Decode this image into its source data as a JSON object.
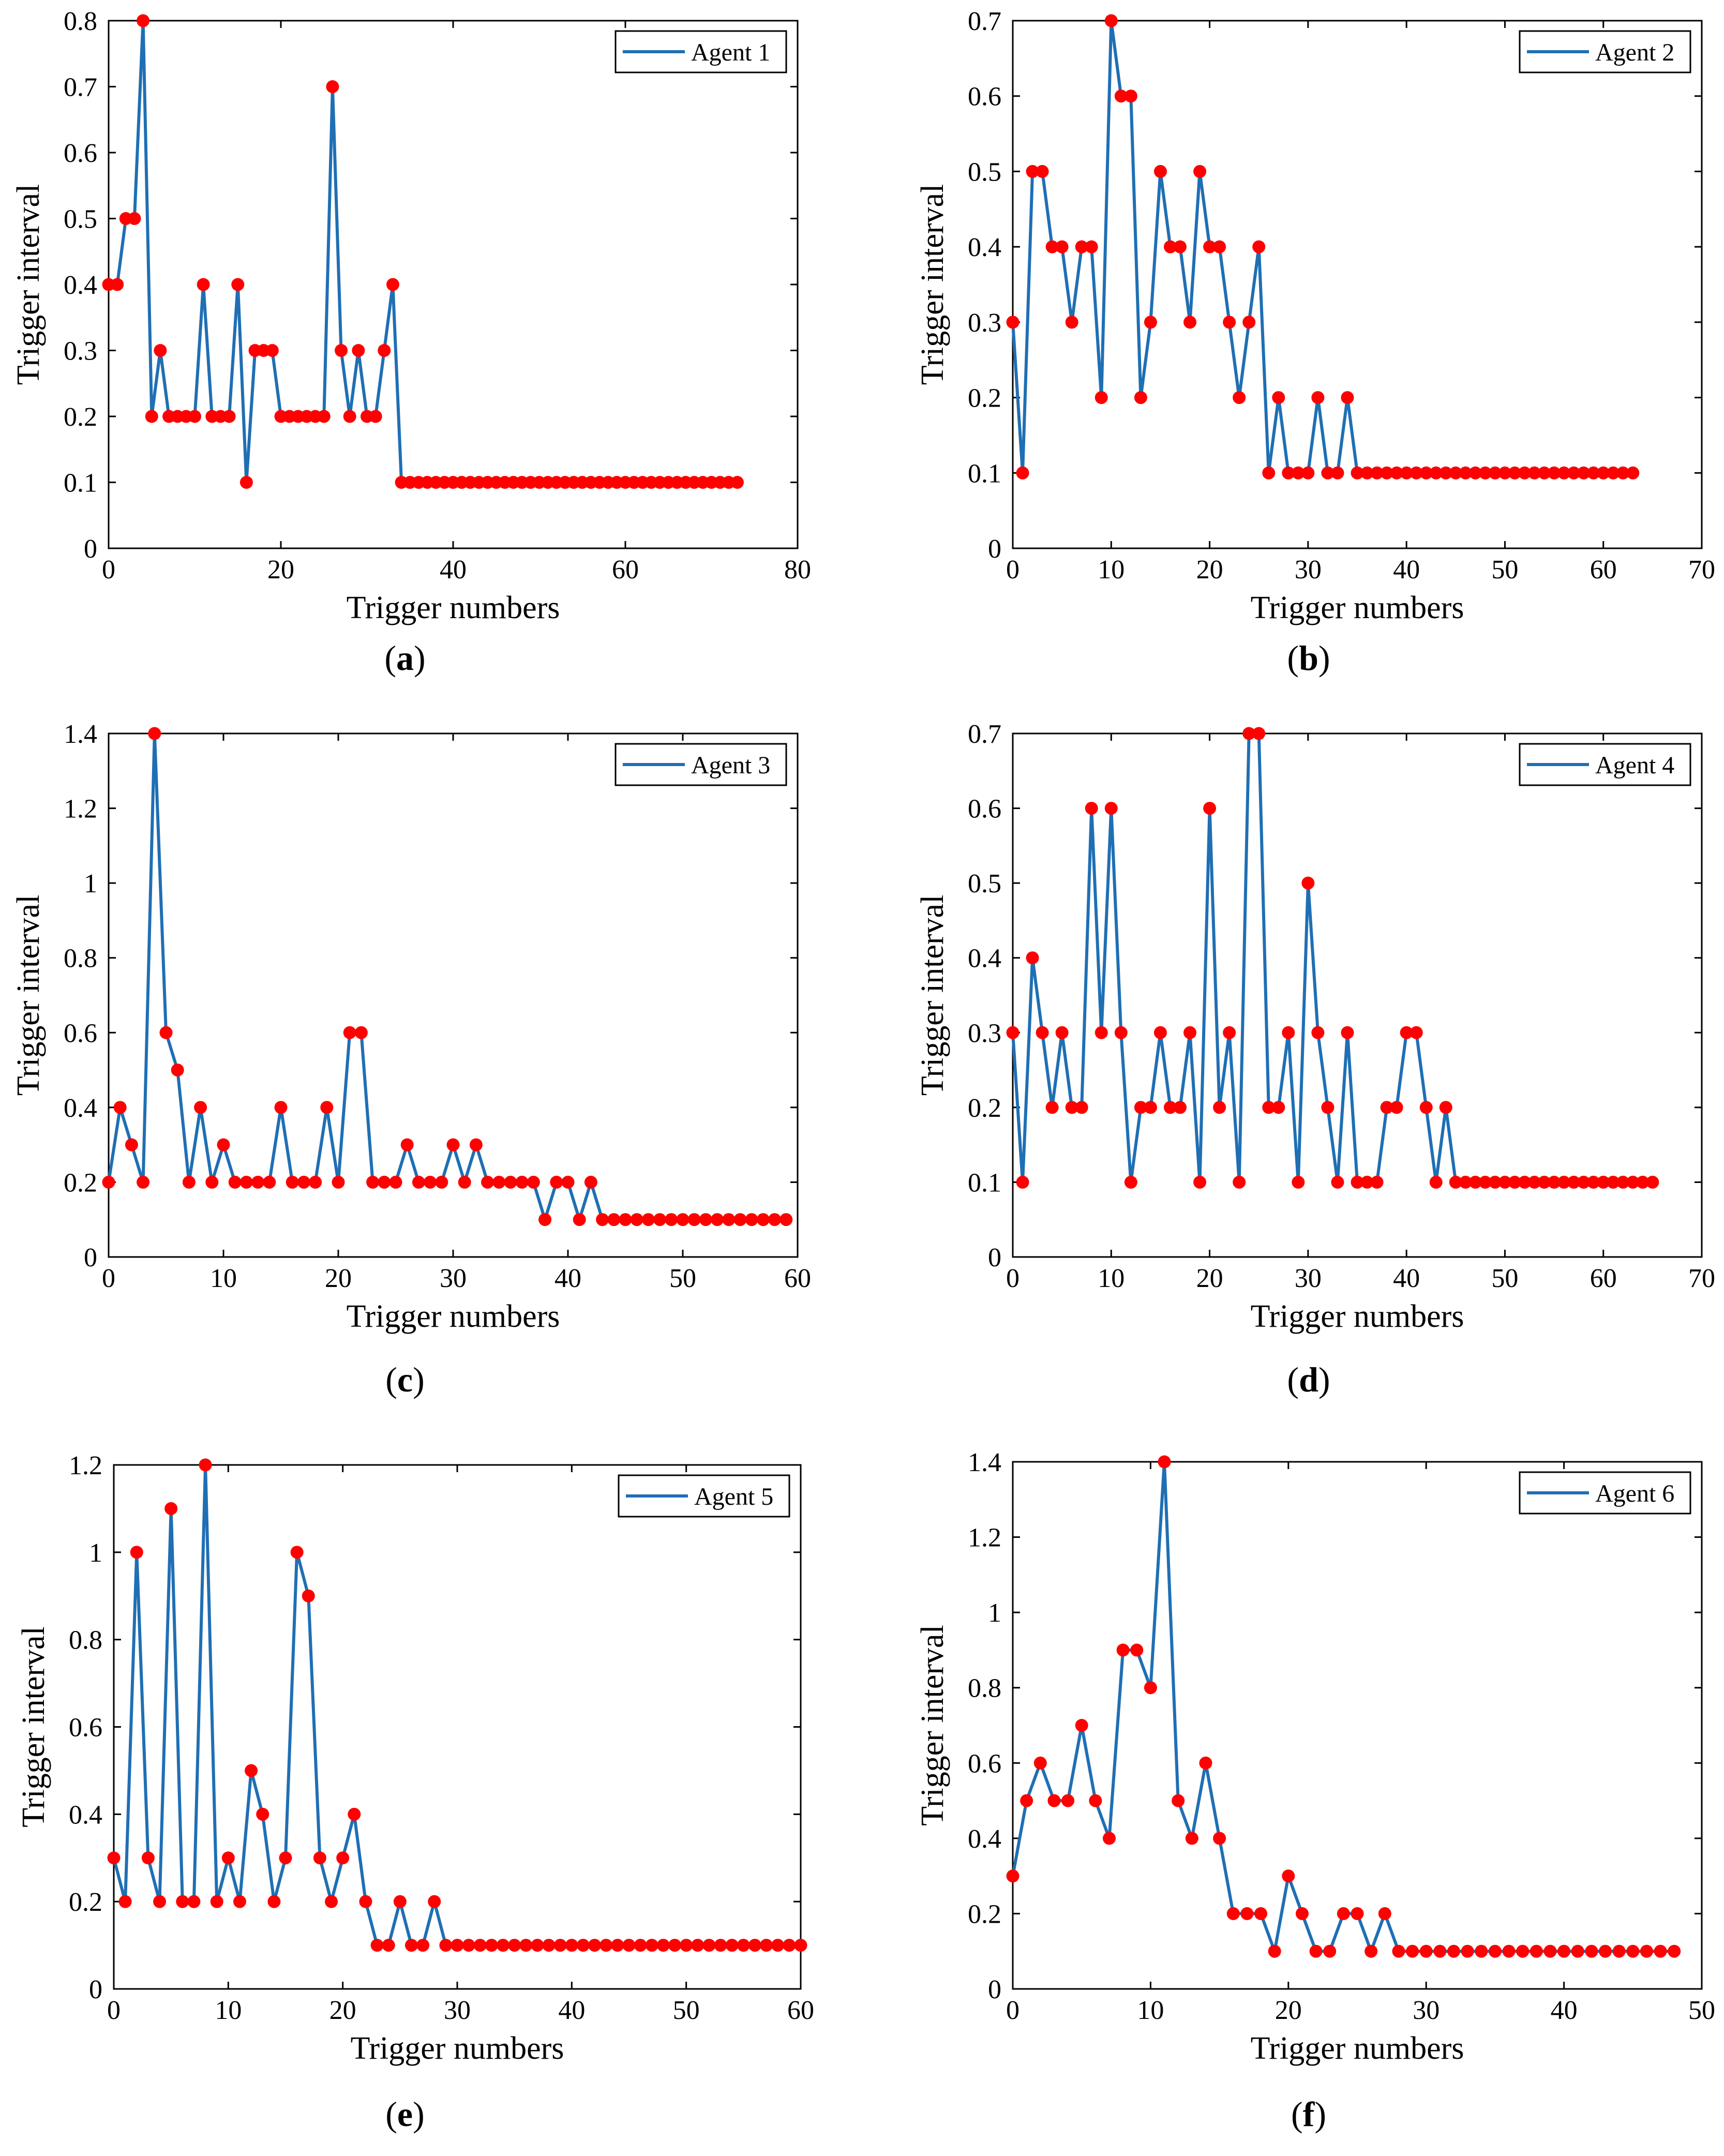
{
  "figure": {
    "colors": {
      "line": "#1f6fb4",
      "marker": "#ff0000",
      "axis": "#000000",
      "background": "#ffffff"
    }
  },
  "chart_data": [
    {
      "type": "line",
      "panel_label": "a",
      "xlabel": "Trigger numbers",
      "ylabel": "Trigger interval",
      "xlim": [
        0,
        80
      ],
      "ylim": [
        0,
        0.8
      ],
      "xticks": [
        0,
        20,
        40,
        60,
        80
      ],
      "yticks": [
        0,
        0.1,
        0.2,
        0.3,
        0.4,
        0.5,
        0.6,
        0.7,
        0.8
      ],
      "xtick_labels": [
        "0",
        "20",
        "40",
        "60",
        "80"
      ],
      "ytick_labels": [
        "0",
        "0.1",
        "0.2",
        "0.3",
        "0.4",
        "0.5",
        "0.6",
        "0.7",
        "0.8"
      ],
      "legend": "top-right",
      "series": [
        {
          "name": "Agent 1",
          "values": [
            0.4,
            0.4,
            0.5,
            0.5,
            0.8,
            0.2,
            0.3,
            0.2,
            0.2,
            0.2,
            0.2,
            0.4,
            0.2,
            0.2,
            0.2,
            0.4,
            0.1,
            0.3,
            0.3,
            0.3,
            0.2,
            0.2,
            0.2,
            0.2,
            0.2,
            0.2,
            0.7,
            0.3,
            0.2,
            0.3,
            0.2,
            0.2,
            0.3,
            0.4,
            0.1,
            0.1,
            0.1,
            0.1,
            0.1,
            0.1,
            0.1,
            0.1,
            0.1,
            0.1,
            0.1,
            0.1,
            0.1,
            0.1,
            0.1,
            0.1,
            0.1,
            0.1,
            0.1,
            0.1,
            0.1,
            0.1,
            0.1,
            0.1,
            0.1,
            0.1,
            0.1,
            0.1,
            0.1,
            0.1,
            0.1,
            0.1,
            0.1,
            0.1,
            0.1,
            0.1,
            0.1,
            0.1,
            0.1,
            0.1
          ]
        }
      ]
    },
    {
      "type": "line",
      "panel_label": "b",
      "xlabel": "Trigger numbers",
      "ylabel": "Trigger interval",
      "xlim": [
        0,
        70
      ],
      "ylim": [
        0,
        0.7
      ],
      "xticks": [
        0,
        10,
        20,
        30,
        40,
        50,
        60,
        70
      ],
      "yticks": [
        0,
        0.1,
        0.2,
        0.3,
        0.4,
        0.5,
        0.6,
        0.7
      ],
      "xtick_labels": [
        "0",
        "10",
        "20",
        "30",
        "40",
        "50",
        "60",
        "70"
      ],
      "ytick_labels": [
        "0",
        "0.1",
        "0.2",
        "0.3",
        "0.4",
        "0.5",
        "0.6",
        "0.7"
      ],
      "legend": "top-right",
      "series": [
        {
          "name": "Agent 2",
          "values": [
            0.3,
            0.1,
            0.5,
            0.5,
            0.4,
            0.4,
            0.3,
            0.4,
            0.4,
            0.2,
            0.7,
            0.6,
            0.6,
            0.2,
            0.3,
            0.5,
            0.4,
            0.4,
            0.3,
            0.5,
            0.4,
            0.4,
            0.3,
            0.2,
            0.3,
            0.4,
            0.1,
            0.2,
            0.1,
            0.1,
            0.1,
            0.2,
            0.1,
            0.1,
            0.2,
            0.1,
            0.1,
            0.1,
            0.1,
            0.1,
            0.1,
            0.1,
            0.1,
            0.1,
            0.1,
            0.1,
            0.1,
            0.1,
            0.1,
            0.1,
            0.1,
            0.1,
            0.1,
            0.1,
            0.1,
            0.1,
            0.1,
            0.1,
            0.1,
            0.1,
            0.1,
            0.1,
            0.1,
            0.1
          ]
        }
      ]
    },
    {
      "type": "line",
      "panel_label": "c",
      "xlabel": "Trigger numbers",
      "ylabel": "Trigger interval",
      "xlim": [
        0,
        60
      ],
      "ylim": [
        0,
        1.4
      ],
      "xticks": [
        0,
        10,
        20,
        30,
        40,
        50,
        60
      ],
      "yticks": [
        0,
        0.2,
        0.4,
        0.6,
        0.8,
        1,
        1.2,
        1.4
      ],
      "xtick_labels": [
        "0",
        "10",
        "20",
        "30",
        "40",
        "50",
        "60"
      ],
      "ytick_labels": [
        "0",
        "0.2",
        "0.4",
        "0.6",
        "0.8",
        "1",
        "1.2",
        "1.4"
      ],
      "legend": "top-right",
      "series": [
        {
          "name": "Agent 3",
          "values": [
            0.2,
            0.4,
            0.3,
            0.2,
            1.4,
            0.6,
            0.5,
            0.2,
            0.4,
            0.2,
            0.3,
            0.2,
            0.2,
            0.2,
            0.2,
            0.4,
            0.2,
            0.2,
            0.2,
            0.4,
            0.2,
            0.6,
            0.6,
            0.2,
            0.2,
            0.2,
            0.3,
            0.2,
            0.2,
            0.2,
            0.3,
            0.2,
            0.3,
            0.2,
            0.2,
            0.2,
            0.2,
            0.2,
            0.1,
            0.2,
            0.2,
            0.1,
            0.2,
            0.1,
            0.1,
            0.1,
            0.1,
            0.1,
            0.1,
            0.1,
            0.1,
            0.1,
            0.1,
            0.1,
            0.1,
            0.1,
            0.1,
            0.1,
            0.1,
            0.1
          ]
        }
      ]
    },
    {
      "type": "line",
      "panel_label": "d",
      "xlabel": "Trigger numbers",
      "ylabel": "Trigger interval",
      "xlim": [
        0,
        70
      ],
      "ylim": [
        0,
        0.7
      ],
      "xticks": [
        0,
        10,
        20,
        30,
        40,
        50,
        60,
        70
      ],
      "yticks": [
        0,
        0.1,
        0.2,
        0.3,
        0.4,
        0.5,
        0.6,
        0.7
      ],
      "xtick_labels": [
        "0",
        "10",
        "20",
        "30",
        "40",
        "50",
        "60",
        "70"
      ],
      "ytick_labels": [
        "0",
        "0.1",
        "0.2",
        "0.3",
        "0.4",
        "0.5",
        "0.6",
        "0.7"
      ],
      "legend": "top-right",
      "series": [
        {
          "name": "Agent 4",
          "values": [
            0.3,
            0.1,
            0.4,
            0.3,
            0.2,
            0.3,
            0.2,
            0.2,
            0.6,
            0.3,
            0.6,
            0.3,
            0.1,
            0.2,
            0.2,
            0.3,
            0.2,
            0.2,
            0.3,
            0.1,
            0.6,
            0.2,
            0.3,
            0.1,
            0.7,
            0.7,
            0.2,
            0.2,
            0.3,
            0.1,
            0.5,
            0.3,
            0.2,
            0.1,
            0.3,
            0.1,
            0.1,
            0.1,
            0.2,
            0.2,
            0.3,
            0.3,
            0.2,
            0.1,
            0.2,
            0.1,
            0.1,
            0.1,
            0.1,
            0.1,
            0.1,
            0.1,
            0.1,
            0.1,
            0.1,
            0.1,
            0.1,
            0.1,
            0.1,
            0.1,
            0.1,
            0.1,
            0.1,
            0.1,
            0.1,
            0.1
          ]
        }
      ]
    },
    {
      "type": "line",
      "panel_label": "e",
      "xlabel": "Trigger numbers",
      "ylabel": "Trigger interval",
      "xlim": [
        0,
        60
      ],
      "ylim": [
        0,
        1.2
      ],
      "xticks": [
        0,
        10,
        20,
        30,
        40,
        50,
        60
      ],
      "yticks": [
        0,
        0.2,
        0.4,
        0.6,
        0.8,
        1,
        1.2
      ],
      "xtick_labels": [
        "0",
        "10",
        "20",
        "30",
        "40",
        "50",
        "60"
      ],
      "ytick_labels": [
        "0",
        "0.2",
        "0.4",
        "0.6",
        "0.8",
        "1",
        "1.2"
      ],
      "legend": "top-right",
      "series": [
        {
          "name": "Agent 5",
          "values": [
            0.3,
            0.2,
            1.0,
            0.3,
            0.2,
            1.1,
            0.2,
            0.2,
            1.2,
            0.2,
            0.3,
            0.2,
            0.5,
            0.4,
            0.2,
            0.3,
            1.0,
            0.9,
            0.3,
            0.2,
            0.3,
            0.4,
            0.2,
            0.1,
            0.1,
            0.2,
            0.1,
            0.1,
            0.2,
            0.1,
            0.1,
            0.1,
            0.1,
            0.1,
            0.1,
            0.1,
            0.1,
            0.1,
            0.1,
            0.1,
            0.1,
            0.1,
            0.1,
            0.1,
            0.1,
            0.1,
            0.1,
            0.1,
            0.1,
            0.1,
            0.1,
            0.1,
            0.1,
            0.1,
            0.1,
            0.1,
            0.1,
            0.1,
            0.1,
            0.1,
            0.1
          ]
        }
      ]
    },
    {
      "type": "line",
      "panel_label": "f",
      "xlabel": "Trigger numbers",
      "ylabel": "Trigger interval",
      "xlim": [
        0,
        50
      ],
      "ylim": [
        0,
        1.4
      ],
      "xticks": [
        0,
        10,
        20,
        30,
        40,
        50
      ],
      "yticks": [
        0,
        0.2,
        0.4,
        0.6,
        0.8,
        1,
        1.2,
        1.4
      ],
      "xtick_labels": [
        "0",
        "10",
        "20",
        "30",
        "40",
        "50"
      ],
      "ytick_labels": [
        "0",
        "0.2",
        "0.4",
        "0.6",
        "0.8",
        "1",
        "1.2",
        "1.4"
      ],
      "legend": "top-right",
      "series": [
        {
          "name": "Agent 6",
          "values": [
            0.3,
            0.5,
            0.6,
            0.5,
            0.5,
            0.7,
            0.5,
            0.4,
            0.9,
            0.9,
            0.8,
            1.4,
            0.5,
            0.4,
            0.6,
            0.4,
            0.2,
            0.2,
            0.2,
            0.1,
            0.3,
            0.2,
            0.1,
            0.1,
            0.2,
            0.2,
            0.1,
            0.2,
            0.1,
            0.1,
            0.1,
            0.1,
            0.1,
            0.1,
            0.1,
            0.1,
            0.1,
            0.1,
            0.1,
            0.1,
            0.1,
            0.1,
            0.1,
            0.1,
            0.1,
            0.1,
            0.1,
            0.1,
            0.1
          ]
        }
      ]
    }
  ]
}
